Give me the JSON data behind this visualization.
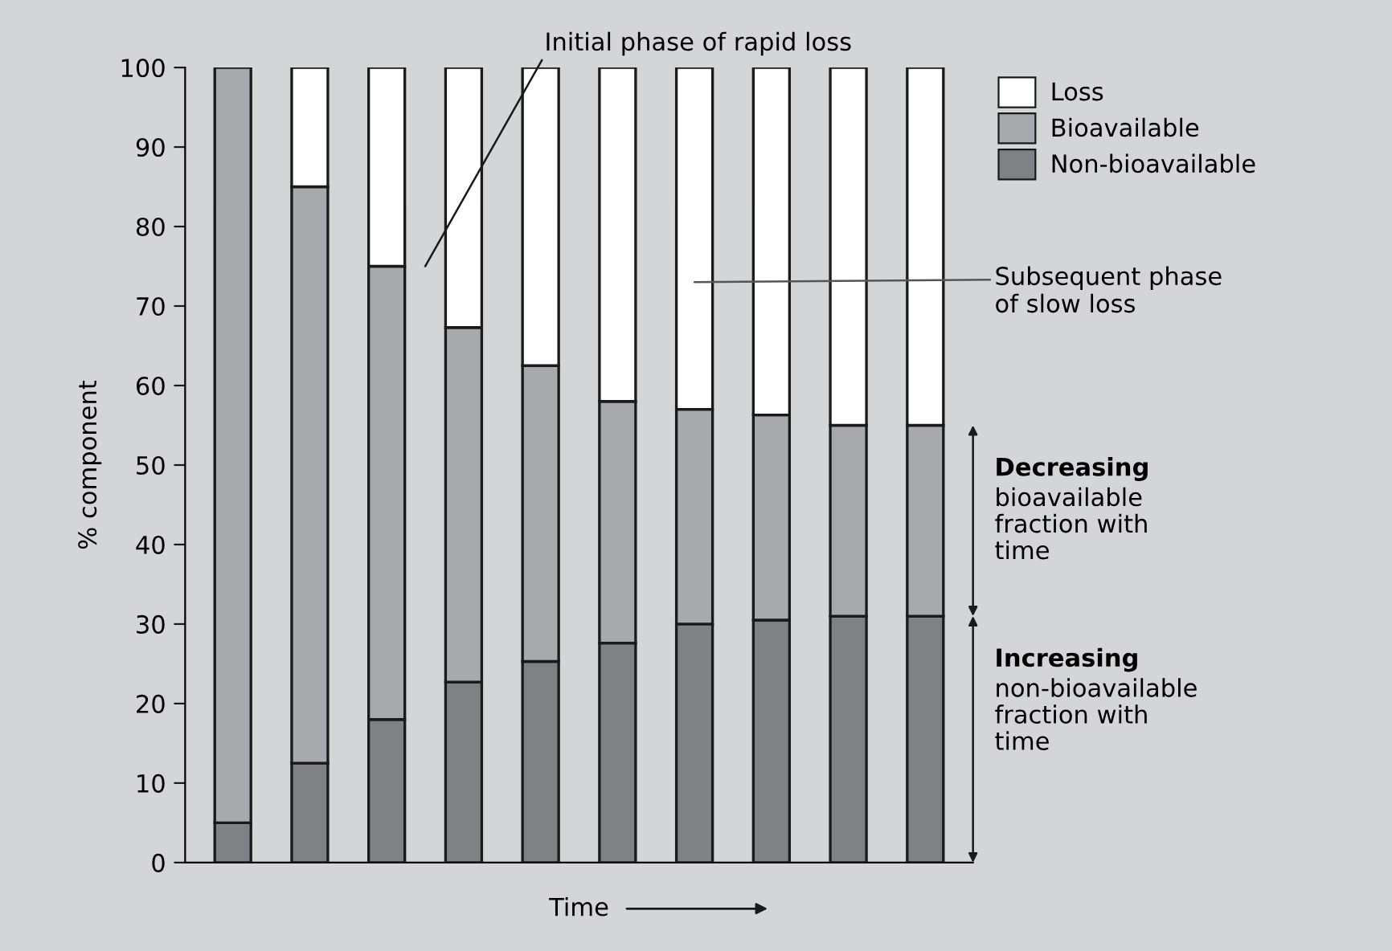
{
  "chart_data": {
    "type": "bar",
    "stacked": true,
    "xlabel": "Time",
    "ylabel": "% component",
    "categories": [
      null,
      null,
      null,
      null,
      null,
      null,
      null,
      null,
      null,
      null
    ],
    "series": [
      {
        "name": "Non-bioavailable",
        "color": "#808184",
        "values": [
          5,
          12.5,
          18,
          22.7,
          25.3,
          27.6,
          30,
          30.5,
          31,
          31
        ]
      },
      {
        "name": "Bioavailable",
        "color": "#a8a9ad",
        "values": [
          95,
          72.5,
          57,
          44.6,
          37.2,
          30.4,
          27,
          25.8,
          24,
          24
        ]
      },
      {
        "name": "Loss",
        "color": "#ffffff",
        "values": [
          0,
          15,
          25,
          32.7,
          37.5,
          42,
          43,
          43.7,
          45,
          45
        ]
      }
    ],
    "ylim": [
      0,
      100
    ],
    "yticks": [
      0,
      10,
      20,
      30,
      40,
      50,
      60,
      70,
      80,
      90,
      100
    ],
    "grid": false,
    "legend": "top right",
    "annotations": [
      "Initial phase of rapid loss",
      "Subsequent phase\nof slow loss",
      "Decreasing\nbioavailable\nfraction with\ntime",
      "Increasing\nnon-bioavailable\nfraction with\ntime"
    ]
  }
}
